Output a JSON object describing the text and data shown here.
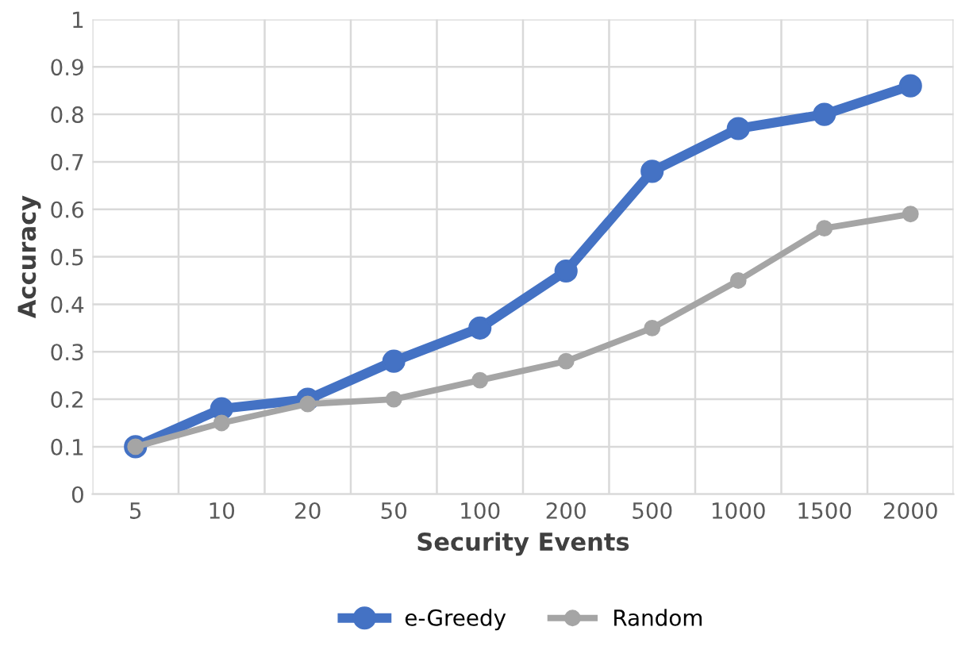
{
  "chart_data": {
    "type": "line",
    "xlabel": "Security Events",
    "ylabel": "Accuracy",
    "categories": [
      "5",
      "10",
      "20",
      "50",
      "100",
      "200",
      "500",
      "1000",
      "1500",
      "2000"
    ],
    "series": [
      {
        "name": "e-Greedy",
        "color": "#4472c4",
        "values": [
          0.1,
          0.18,
          0.2,
          0.28,
          0.35,
          0.47,
          0.68,
          0.77,
          0.8,
          0.86
        ]
      },
      {
        "name": "Random",
        "color": "#a5a5a5",
        "values": [
          0.1,
          0.15,
          0.19,
          0.2,
          0.24,
          0.28,
          0.35,
          0.45,
          0.56,
          0.59
        ]
      }
    ],
    "ylim": [
      0,
      1
    ],
    "yticks": [
      0,
      0.1,
      0.2,
      0.3,
      0.4,
      0.5,
      0.6,
      0.7,
      0.8,
      0.9,
      1
    ],
    "grid": true,
    "legend": "bottom",
    "marker": "circle",
    "line_style": "solid"
  }
}
